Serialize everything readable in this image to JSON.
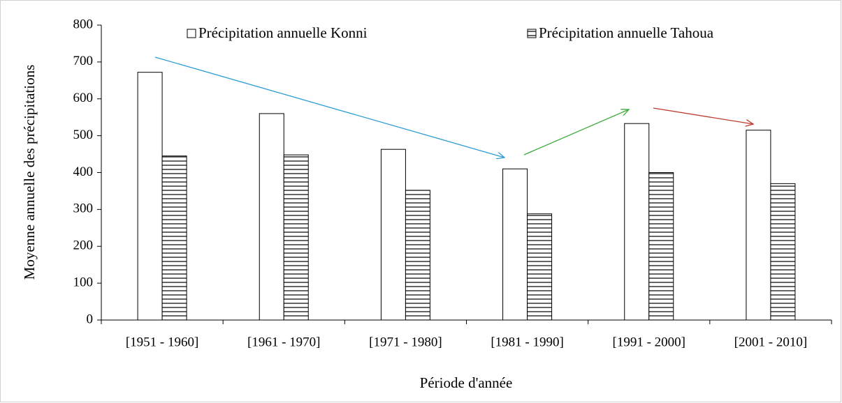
{
  "chart_data": {
    "type": "bar",
    "y_label": "Moyenne annuelle  des précipitations",
    "x_label": "Période d'année",
    "categories": [
      "[1951 - 1960]",
      "[1961 - 1970]",
      "[1971 - 1980]",
      "[1981 - 1990]",
      "[1991 - 2000]",
      "[2001 - 2010]"
    ],
    "series": [
      {
        "name": "Précipitation annuelle Konni",
        "color": "#ffffff",
        "hatch": false,
        "values": [
          672,
          560,
          463,
          410,
          533,
          515
        ]
      },
      {
        "name": "Précipitation annuelle Tahoua",
        "color": "#ffffff",
        "hatch": true,
        "values": [
          445,
          448,
          352,
          288,
          400,
          370
        ]
      }
    ],
    "ylim": [
      0,
      800
    ],
    "yticks": [
      0,
      100,
      200,
      300,
      400,
      500,
      600,
      700,
      800
    ],
    "grid": false
  }
}
